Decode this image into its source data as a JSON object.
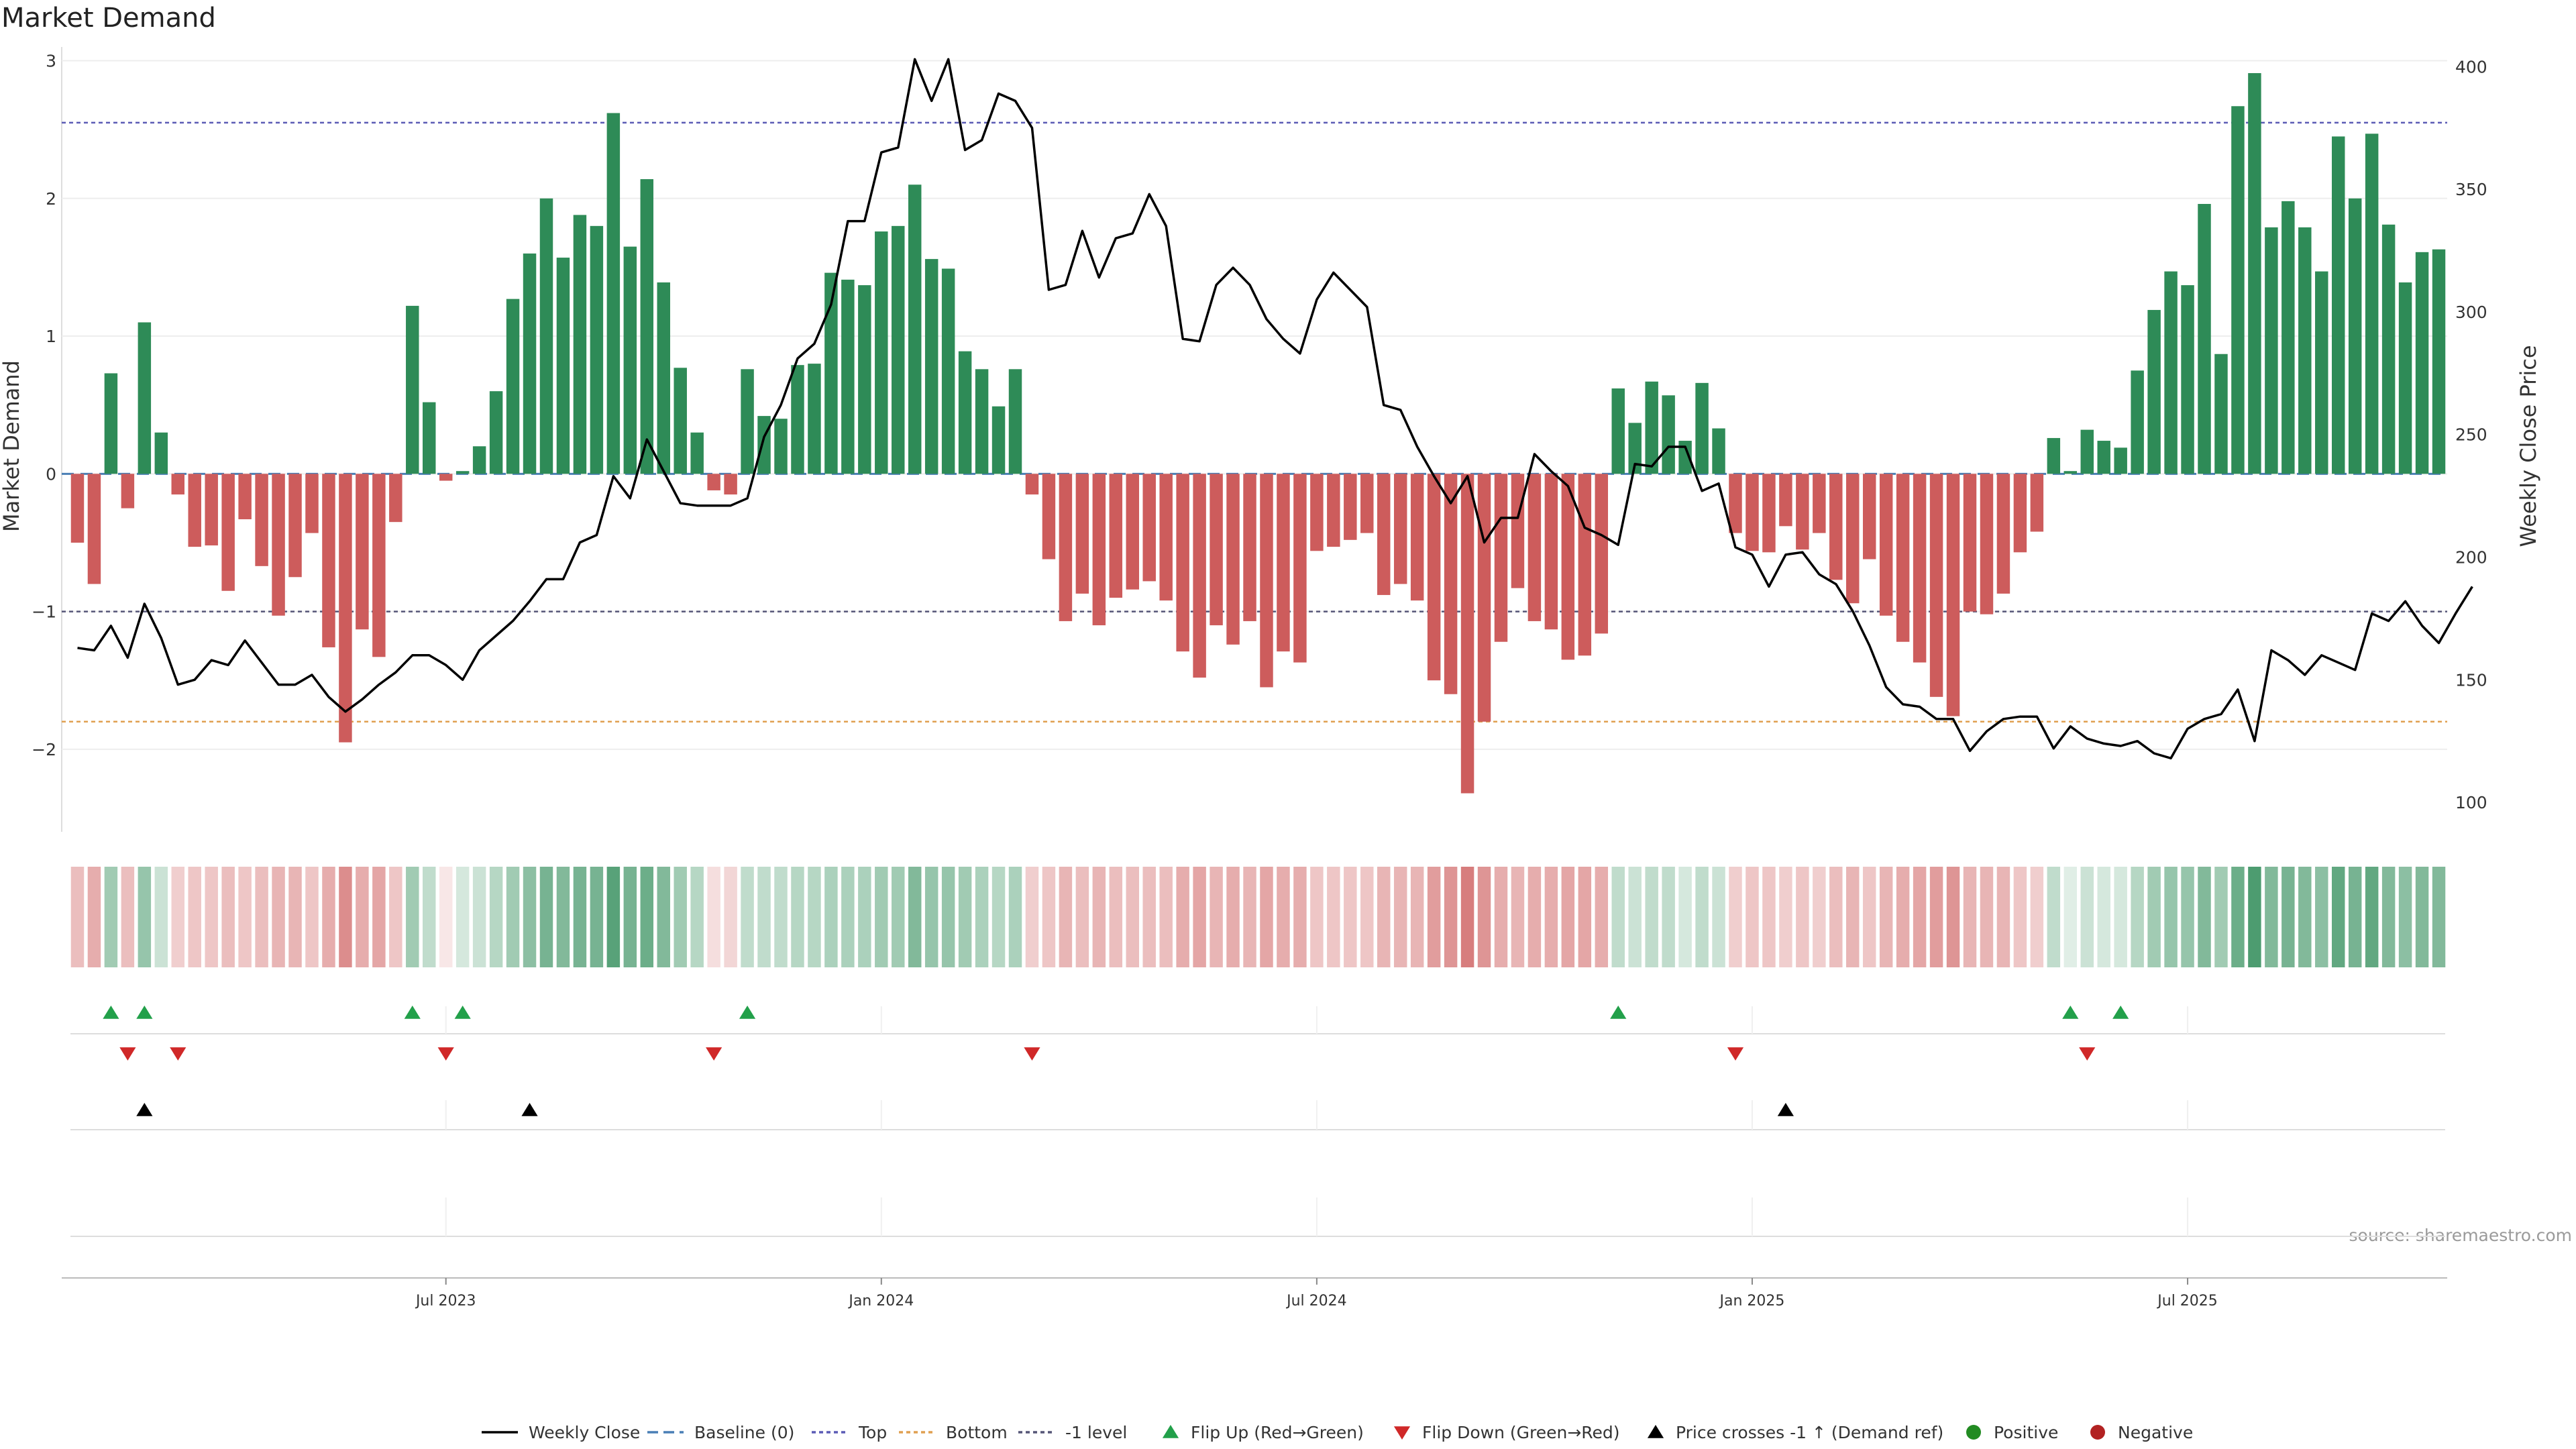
{
  "chart_data": {
    "type": "bar",
    "title": "Market Demand",
    "ylabel_left": "Market Demand",
    "ylabel_right": "Weekly Close Price",
    "source": "source: sharemaestro.com",
    "ylim_left": [
      -2.6,
      3.1
    ],
    "ylim_right": [
      88,
      408
    ],
    "yticks_left": [
      3,
      2,
      1,
      0,
      -1,
      -2
    ],
    "yticks_left_labels": [
      "3",
      "2",
      "1",
      "0",
      "−1",
      "−2"
    ],
    "yticks_right": [
      400,
      350,
      300,
      250,
      200,
      150,
      100
    ],
    "x_tick_labels": [
      {
        "label": "Jul 2023",
        "week": 22
      },
      {
        "label": "Jan 2024",
        "week": 48
      },
      {
        "label": "Jul 2024",
        "week": 74
      },
      {
        "label": "Jan 2025",
        "week": 100
      },
      {
        "label": "Jul 2025",
        "week": 126
      }
    ],
    "levels": {
      "top": 2.55,
      "bottom": -1.8,
      "minus_one": -1.0,
      "baseline": 0
    },
    "colors": {
      "positive": "#2e8b57",
      "negative": "#cd5c5c",
      "price": "#000000",
      "baseline": "#4a7fb5",
      "top": "#5b5bb5",
      "bottom": "#e0a050",
      "minus_one": "#555577",
      "flip_up": "#22a04a",
      "flip_down": "#d02828",
      "cross": "#000000",
      "positive_dot": "#228b22",
      "negative_dot": "#b22222"
    },
    "demand": [
      -0.5,
      -0.8,
      0.73,
      -0.25,
      1.1,
      0.3,
      -0.15,
      -0.53,
      -0.52,
      -0.85,
      -0.33,
      -0.67,
      -1.03,
      -0.75,
      -0.43,
      -1.26,
      -1.95,
      -1.13,
      -1.33,
      -0.35,
      1.22,
      0.52,
      -0.05,
      0.02,
      0.2,
      0.6,
      1.27,
      1.6,
      2.0,
      1.57,
      1.88,
      1.8,
      2.62,
      1.65,
      2.14,
      1.39,
      0.77,
      0.3,
      -0.12,
      -0.15,
      0.76,
      0.42,
      0.4,
      0.79,
      0.8,
      1.46,
      1.41,
      1.37,
      1.76,
      1.8,
      2.1,
      1.56,
      1.49,
      0.89,
      0.76,
      0.49,
      0.76,
      -0.15,
      -0.62,
      -1.07,
      -0.87,
      -1.1,
      -0.9,
      -0.84,
      -0.78,
      -0.92,
      -1.29,
      -1.48,
      -1.1,
      -1.24,
      -1.07,
      -1.55,
      -1.29,
      -1.37,
      -0.56,
      -0.53,
      -0.48,
      -0.43,
      -0.88,
      -0.8,
      -0.92,
      -1.5,
      -1.6,
      -2.32,
      -1.8,
      -1.22,
      -0.83,
      -1.07,
      -1.13,
      -1.35,
      -1.32,
      -1.16,
      0.62,
      0.37,
      0.67,
      0.57,
      0.24,
      0.66,
      0.33,
      -0.43,
      -0.56,
      -0.57,
      -0.38,
      -0.55,
      -0.43,
      -0.77,
      -0.94,
      -0.62,
      -1.03,
      -1.22,
      -1.37,
      -1.62,
      -1.76,
      -1.0,
      -1.02,
      -0.87,
      -0.57,
      -0.42,
      0.26,
      0.02,
      0.32,
      0.24,
      0.19,
      0.75,
      1.19,
      1.47,
      1.37,
      1.96,
      0.87,
      2.67,
      2.91,
      1.79,
      1.98,
      1.79,
      1.47,
      2.45,
      2.0,
      2.47,
      1.81,
      1.39,
      1.61,
      1.63
    ],
    "price": [
      163,
      162,
      172,
      159,
      181,
      167,
      148,
      150,
      158,
      156,
      166,
      157,
      148,
      148,
      152,
      143,
      137,
      142,
      148,
      153,
      160,
      160,
      156,
      150,
      162,
      168,
      174,
      182,
      191,
      191,
      206,
      209,
      233,
      224,
      248,
      235,
      222,
      221,
      221,
      221,
      224,
      249,
      262,
      281,
      287,
      303,
      337,
      337,
      365,
      367,
      403,
      386,
      403,
      366,
      370,
      389,
      386,
      375,
      309,
      311,
      333,
      314,
      330,
      332,
      348,
      335,
      289,
      288,
      311,
      318,
      311,
      297,
      289,
      283,
      305,
      316,
      309,
      302,
      262,
      260,
      245,
      233,
      222,
      233,
      206,
      216,
      216,
      242,
      235,
      229,
      212,
      209,
      205,
      238,
      237,
      245,
      245,
      227,
      230,
      204,
      201,
      188,
      201,
      202,
      193,
      189,
      178,
      164,
      147,
      140,
      139,
      134,
      134,
      121,
      129,
      134,
      135,
      135,
      122,
      131,
      126,
      124,
      123,
      125,
      120,
      118,
      130,
      134,
      136,
      146,
      125,
      162,
      158,
      152,
      160,
      157,
      154,
      177,
      174,
      182,
      172,
      165,
      177,
      188
    ],
    "heat_alpha": [
      0.4,
      0.5,
      0.45,
      0.4,
      0.5,
      0.25,
      0.3,
      0.35,
      0.35,
      0.4,
      0.35,
      0.4,
      0.45,
      0.45,
      0.35,
      0.5,
      0.7,
      0.5,
      0.55,
      0.35,
      0.45,
      0.3,
      0.15,
      0.2,
      0.25,
      0.35,
      0.45,
      0.55,
      0.65,
      0.6,
      0.65,
      0.65,
      0.8,
      0.65,
      0.7,
      0.6,
      0.45,
      0.35,
      0.2,
      0.25,
      0.3,
      0.3,
      0.3,
      0.35,
      0.35,
      0.4,
      0.4,
      0.4,
      0.45,
      0.45,
      0.6,
      0.5,
      0.5,
      0.45,
      0.4,
      0.35,
      0.4,
      0.3,
      0.35,
      0.45,
      0.4,
      0.45,
      0.4,
      0.4,
      0.4,
      0.4,
      0.5,
      0.55,
      0.45,
      0.5,
      0.45,
      0.55,
      0.5,
      0.5,
      0.35,
      0.35,
      0.35,
      0.35,
      0.45,
      0.45,
      0.45,
      0.6,
      0.65,
      0.8,
      0.65,
      0.5,
      0.45,
      0.5,
      0.5,
      0.55,
      0.55,
      0.5,
      0.3,
      0.25,
      0.3,
      0.3,
      0.2,
      0.3,
      0.25,
      0.3,
      0.35,
      0.35,
      0.3,
      0.35,
      0.3,
      0.4,
      0.45,
      0.35,
      0.45,
      0.5,
      0.55,
      0.6,
      0.65,
      0.45,
      0.45,
      0.45,
      0.35,
      0.3,
      0.3,
      0.15,
      0.25,
      0.2,
      0.2,
      0.35,
      0.45,
      0.5,
      0.5,
      0.6,
      0.45,
      0.7,
      0.85,
      0.6,
      0.65,
      0.6,
      0.55,
      0.75,
      0.65,
      0.75,
      0.6,
      0.55,
      0.6,
      0.6
    ],
    "flip_up_weeks": [
      2,
      4,
      20,
      23,
      40,
      92,
      119,
      122
    ],
    "flip_down_weeks": [
      3,
      6,
      22,
      38,
      57,
      99,
      120
    ],
    "cross_weeks": [
      4,
      27,
      102
    ],
    "legend": [
      {
        "label": "Weekly Close",
        "marker": "line"
      },
      {
        "label": "Baseline (0)",
        "marker": "dashed"
      },
      {
        "label": "Top",
        "marker": "dotted"
      },
      {
        "label": "Bottom",
        "marker": "dotted"
      },
      {
        "label": "-1 level",
        "marker": "dotted"
      },
      {
        "label": "Flip Up (Red→Green)",
        "marker": "triangle-up"
      },
      {
        "label": "Flip Down (Green→Red)",
        "marker": "triangle-down"
      },
      {
        "label": "Price crosses -1 ↑ (Demand ref)",
        "marker": "triangle-up"
      },
      {
        "label": "Positive",
        "marker": "dot"
      },
      {
        "label": "Negative",
        "marker": "dot"
      }
    ]
  }
}
